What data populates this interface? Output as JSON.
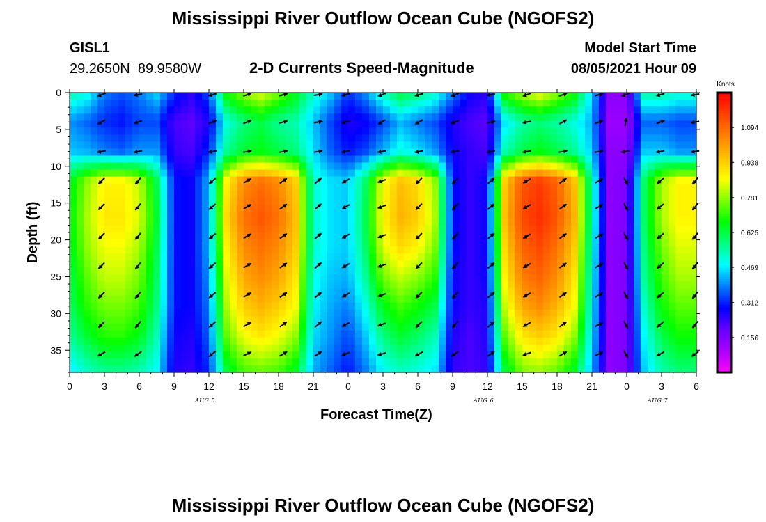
{
  "header": {
    "title": "Mississippi River Outflow Ocean Cube (NGOFS2)",
    "station_id": "GISL1",
    "station_coords": "29.2650N  89.9580W",
    "plot_type": "2-D Currents Speed-Magnitude",
    "model_start_label": "Model Start Time",
    "model_start_value": "08/05/2021 Hour 09"
  },
  "footer": {
    "title": "Mississippi River Outflow Ocean Cube (NGOFS2)"
  },
  "chart_data": {
    "type": "heatmap",
    "xlabel": "Forecast Time(Z)",
    "ylabel": "Depth (ft)",
    "x_range_hours": [
      0,
      54
    ],
    "y_range_ft": [
      0,
      38
    ],
    "y_inverted": true,
    "x_ticks": [
      "0",
      "3",
      "6",
      "9",
      "12",
      "15",
      "18",
      "21",
      "0",
      "3",
      "6",
      "9",
      "12",
      "15",
      "18",
      "21",
      "0",
      "3",
      "6"
    ],
    "y_ticks": [
      "0",
      "5",
      "10",
      "15",
      "20",
      "25",
      "30",
      "35"
    ],
    "day_labels": [
      {
        "text": "AUG 5",
        "hour": 12
      },
      {
        "text": "AUG 6",
        "hour": 36
      },
      {
        "text": "AUG 7",
        "hour": 51
      }
    ],
    "colorbar": {
      "unit": "Knots",
      "min": 0,
      "max": 1.25,
      "ticks": [
        "1.094",
        "0.938",
        "0.781",
        "0.625",
        "0.469",
        "0.312",
        "0.156"
      ],
      "colors": [
        "#ff00ff",
        "#aa00ff",
        "#6600ff",
        "#0000ff",
        "#0080ff",
        "#00ffff",
        "#00ff80",
        "#00ff00",
        "#80ff00",
        "#ffff00",
        "#ffc000",
        "#ff8000",
        "#ff4000",
        "#ff0000"
      ]
    },
    "depth_levels_ft": [
      0,
      4,
      8,
      12,
      17,
      21,
      25,
      29,
      33,
      38
    ],
    "time_hours": [
      0,
      1.5,
      3,
      4.5,
      6,
      7.5,
      9,
      10.5,
      12,
      13.5,
      15,
      16.5,
      18,
      19.5,
      21,
      22.5,
      24,
      25.5,
      27,
      28.5,
      30,
      31.5,
      33,
      34.5,
      36,
      37.5,
      39,
      40.5,
      42,
      43.5,
      45,
      46.5,
      48,
      49.5,
      51,
      52.5,
      54
    ],
    "speed_knots": [
      [
        0.55,
        0.5,
        0.38,
        0.35,
        0.38,
        0.45,
        0.32,
        0.25,
        0.35,
        0.68,
        0.78,
        0.84,
        0.76,
        0.66,
        0.52,
        0.44,
        0.32,
        0.4,
        0.53,
        0.63,
        0.58,
        0.52,
        0.38,
        0.28,
        0.25,
        0.7,
        0.8,
        0.86,
        0.78,
        0.68,
        0.45,
        0.14,
        0.14,
        0.55,
        0.55,
        0.52,
        0.52
      ],
      [
        0.4,
        0.36,
        0.32,
        0.3,
        0.34,
        0.34,
        0.22,
        0.2,
        0.26,
        0.5,
        0.58,
        0.62,
        0.56,
        0.54,
        0.44,
        0.34,
        0.26,
        0.28,
        0.34,
        0.42,
        0.38,
        0.34,
        0.26,
        0.22,
        0.2,
        0.46,
        0.55,
        0.58,
        0.55,
        0.5,
        0.42,
        0.12,
        0.12,
        0.36,
        0.36,
        0.34,
        0.34
      ],
      [
        0.44,
        0.42,
        0.38,
        0.36,
        0.4,
        0.4,
        0.24,
        0.22,
        0.32,
        0.56,
        0.64,
        0.66,
        0.62,
        0.58,
        0.46,
        0.36,
        0.3,
        0.34,
        0.42,
        0.5,
        0.46,
        0.4,
        0.28,
        0.24,
        0.22,
        0.54,
        0.62,
        0.66,
        0.62,
        0.56,
        0.44,
        0.14,
        0.14,
        0.44,
        0.44,
        0.4,
        0.4
      ],
      [
        0.64,
        0.78,
        0.88,
        0.88,
        0.82,
        0.62,
        0.3,
        0.28,
        0.42,
        0.88,
        1.04,
        1.08,
        1.04,
        0.94,
        0.52,
        0.46,
        0.44,
        0.6,
        0.86,
        0.96,
        0.92,
        0.78,
        0.3,
        0.24,
        0.28,
        0.94,
        1.12,
        1.16,
        1.1,
        0.96,
        0.54,
        0.14,
        0.16,
        0.6,
        0.8,
        0.88,
        0.88
      ],
      [
        0.66,
        0.8,
        0.9,
        0.9,
        0.84,
        0.64,
        0.3,
        0.28,
        0.42,
        0.92,
        1.08,
        1.12,
        1.08,
        0.96,
        0.52,
        0.46,
        0.44,
        0.62,
        0.88,
        0.98,
        0.94,
        0.8,
        0.3,
        0.24,
        0.28,
        0.96,
        1.14,
        1.18,
        1.12,
        0.98,
        0.54,
        0.14,
        0.16,
        0.6,
        0.8,
        0.88,
        0.88
      ],
      [
        0.64,
        0.78,
        0.86,
        0.86,
        0.8,
        0.62,
        0.3,
        0.28,
        0.42,
        0.88,
        1.04,
        1.08,
        1.04,
        0.94,
        0.52,
        0.46,
        0.44,
        0.6,
        0.84,
        0.92,
        0.88,
        0.76,
        0.3,
        0.24,
        0.28,
        0.92,
        1.1,
        1.14,
        1.08,
        0.94,
        0.52,
        0.14,
        0.16,
        0.58,
        0.76,
        0.84,
        0.84
      ],
      [
        0.62,
        0.74,
        0.82,
        0.82,
        0.76,
        0.6,
        0.3,
        0.28,
        0.4,
        0.84,
        1.0,
        1.04,
        1.0,
        0.9,
        0.5,
        0.44,
        0.42,
        0.56,
        0.76,
        0.82,
        0.78,
        0.7,
        0.28,
        0.24,
        0.28,
        0.88,
        1.06,
        1.1,
        1.04,
        0.9,
        0.5,
        0.14,
        0.16,
        0.56,
        0.72,
        0.8,
        0.8
      ],
      [
        0.6,
        0.7,
        0.76,
        0.76,
        0.72,
        0.58,
        0.3,
        0.28,
        0.38,
        0.8,
        0.94,
        0.98,
        0.94,
        0.86,
        0.48,
        0.42,
        0.38,
        0.5,
        0.66,
        0.72,
        0.68,
        0.62,
        0.28,
        0.24,
        0.26,
        0.82,
        1.0,
        1.04,
        0.98,
        0.86,
        0.48,
        0.14,
        0.16,
        0.52,
        0.68,
        0.74,
        0.74
      ],
      [
        0.56,
        0.64,
        0.7,
        0.7,
        0.66,
        0.54,
        0.28,
        0.26,
        0.36,
        0.74,
        0.86,
        0.9,
        0.86,
        0.78,
        0.46,
        0.4,
        0.34,
        0.44,
        0.58,
        0.64,
        0.6,
        0.54,
        0.26,
        0.22,
        0.26,
        0.74,
        0.9,
        0.94,
        0.9,
        0.78,
        0.46,
        0.14,
        0.16,
        0.48,
        0.62,
        0.68,
        0.68
      ],
      [
        0.46,
        0.52,
        0.56,
        0.56,
        0.54,
        0.48,
        0.26,
        0.24,
        0.32,
        0.62,
        0.72,
        0.74,
        0.72,
        0.64,
        0.42,
        0.36,
        0.3,
        0.38,
        0.48,
        0.52,
        0.5,
        0.46,
        0.24,
        0.22,
        0.24,
        0.62,
        0.76,
        0.78,
        0.74,
        0.64,
        0.42,
        0.14,
        0.16,
        0.44,
        0.54,
        0.58,
        0.58
      ]
    ],
    "arrows": {
      "times": [
        2.75,
        5.9,
        12.3,
        15.3,
        18.4,
        21.4,
        23.8,
        26.9,
        30.1,
        33.2,
        36.3,
        39.4,
        42.5,
        45.6,
        47.9,
        50.9,
        53.9
      ],
      "depths": [
        0,
        4,
        8,
        12,
        15.5,
        19.5,
        23.5,
        27.5,
        31.5,
        35.5
      ],
      "angles_deg": [
        [
          200,
          190,
          195,
          20,
          15,
          10,
          195,
          200,
          195,
          200,
          190,
          200,
          20,
          15,
          200,
          195,
          190
        ],
        [
          210,
          200,
          20,
          20,
          15,
          10,
          195,
          210,
          210,
          200,
          10,
          190,
          30,
          20,
          80,
          20,
          190
        ],
        [
          190,
          190,
          190,
          10,
          10,
          10,
          190,
          190,
          190,
          190,
          190,
          190,
          10,
          10,
          190,
          190,
          190
        ],
        [
          225,
          230,
          220,
          30,
          35,
          40,
          210,
          200,
          225,
          230,
          40,
          210,
          35,
          30,
          300,
          220,
          230
        ],
        [
          225,
          230,
          220,
          30,
          35,
          40,
          210,
          200,
          225,
          230,
          40,
          210,
          35,
          30,
          300,
          220,
          230
        ],
        [
          225,
          230,
          220,
          30,
          35,
          40,
          210,
          200,
          225,
          230,
          40,
          210,
          35,
          30,
          300,
          220,
          230
        ],
        [
          225,
          230,
          220,
          30,
          35,
          40,
          210,
          200,
          225,
          230,
          40,
          210,
          35,
          30,
          300,
          220,
          230
        ],
        [
          225,
          230,
          220,
          30,
          35,
          40,
          210,
          200,
          225,
          230,
          40,
          210,
          35,
          30,
          300,
          220,
          230
        ],
        [
          225,
          230,
          220,
          30,
          35,
          40,
          210,
          200,
          225,
          230,
          40,
          210,
          35,
          30,
          300,
          220,
          230
        ],
        [
          210,
          215,
          220,
          25,
          30,
          35,
          200,
          195,
          210,
          215,
          35,
          200,
          30,
          25,
          300,
          210,
          215
        ]
      ]
    }
  }
}
